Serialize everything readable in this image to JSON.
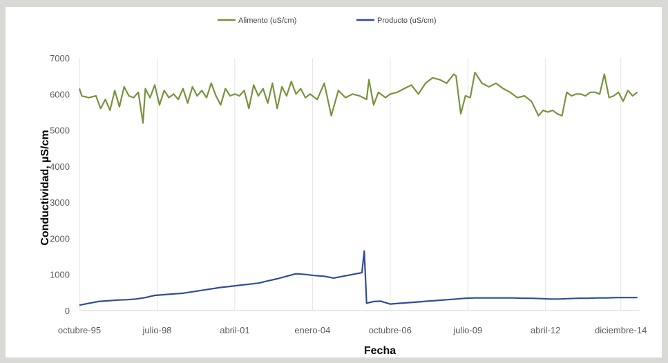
{
  "chart_data": {
    "type": "line",
    "title": "",
    "xlabel": "Fecha",
    "ylabel": "Conductividad, µS/cm",
    "ylim": [
      0,
      7000
    ],
    "y_ticks": [
      "0",
      "1000",
      "2000",
      "3000",
      "4000",
      "5000",
      "6000",
      "7000"
    ],
    "x_ticks": [
      "octubre-95",
      "julio-98",
      "abril-01",
      "enero-04",
      "octubre-06",
      "julio-09",
      "abril-12",
      "diciembre-14"
    ],
    "x_tick_dates": [
      "1995-10",
      "1998-07",
      "2001-04",
      "2004-01",
      "2006-10",
      "2009-07",
      "2012-04",
      "2014-12"
    ],
    "xlim": [
      "1995-10",
      "2015-08"
    ],
    "grid": "vertical",
    "legend_position": "top",
    "series": [
      {
        "name": "Alimento (uS/cm)",
        "color": "#77933c",
        "x": [
          "1995-10",
          "1995-11",
          "1996-02",
          "1996-05",
          "1996-07",
          "1996-09",
          "1996-11",
          "1997-01",
          "1997-03",
          "1997-05",
          "1997-07",
          "1997-09",
          "1997-11",
          "1998-01",
          "1998-02",
          "1998-04",
          "1998-06",
          "1998-08",
          "1998-10",
          "1998-12",
          "1999-02",
          "1999-04",
          "1999-06",
          "1999-08",
          "1999-10",
          "1999-12",
          "2000-02",
          "2000-04",
          "2000-06",
          "2000-08",
          "2000-10",
          "2000-12",
          "2001-02",
          "2001-04",
          "2001-06",
          "2001-08",
          "2001-10",
          "2001-12",
          "2002-02",
          "2002-04",
          "2002-06",
          "2002-08",
          "2002-10",
          "2002-12",
          "2003-02",
          "2003-04",
          "2003-06",
          "2003-08",
          "2003-10",
          "2003-12",
          "2004-03",
          "2004-06",
          "2004-09",
          "2004-12",
          "2005-03",
          "2005-06",
          "2005-09",
          "2005-12",
          "2006-01",
          "2006-03",
          "2006-05",
          "2006-08",
          "2006-10",
          "2007-01",
          "2007-04",
          "2007-07",
          "2007-10",
          "2008-01",
          "2008-04",
          "2008-07",
          "2008-10",
          "2009-01",
          "2009-02",
          "2009-04",
          "2009-06",
          "2009-08",
          "2009-10",
          "2010-01",
          "2010-04",
          "2010-07",
          "2010-10",
          "2011-01",
          "2011-04",
          "2011-07",
          "2011-10",
          "2012-01",
          "2012-03",
          "2012-05",
          "2012-07",
          "2012-09",
          "2012-11",
          "2013-01",
          "2013-03",
          "2013-05",
          "2013-07",
          "2013-09",
          "2013-11",
          "2014-01",
          "2014-03",
          "2014-05",
          "2014-07",
          "2014-09",
          "2014-11",
          "2015-01",
          "2015-03",
          "2015-05",
          "2015-07"
        ],
        "values": [
          6150,
          5950,
          5900,
          5950,
          5600,
          5850,
          5550,
          6100,
          5650,
          6200,
          5950,
          5900,
          6050,
          5200,
          6150,
          5900,
          6250,
          5700,
          6100,
          5900,
          6000,
          5850,
          6150,
          5750,
          6200,
          5950,
          6100,
          5900,
          6300,
          5950,
          5700,
          6150,
          5950,
          6000,
          5950,
          6100,
          5600,
          6250,
          5950,
          6150,
          5750,
          6300,
          5600,
          6200,
          5950,
          6350,
          6000,
          6150,
          5900,
          6000,
          5850,
          6300,
          5400,
          6100,
          5900,
          6000,
          5950,
          5850,
          6400,
          5700,
          6050,
          5900,
          6000,
          6050,
          6150,
          6250,
          6000,
          6300,
          6450,
          6400,
          6300,
          6550,
          6500,
          5450,
          5950,
          5900,
          6600,
          6300,
          6200,
          6300,
          6150,
          6050,
          5900,
          5950,
          5800,
          5400,
          5550,
          5500,
          5550,
          5450,
          5400,
          6050,
          5950,
          6000,
          6000,
          5950,
          6050,
          6050,
          6000,
          6550,
          5900,
          5950,
          6050,
          5800,
          6100,
          5950,
          6050
        ]
      },
      {
        "name": "Producto (uS/cm)",
        "color": "#2f4b9b",
        "x": [
          "1995-10",
          "1996-02",
          "1996-06",
          "1996-10",
          "1997-02",
          "1997-06",
          "1997-10",
          "1998-02",
          "1998-06",
          "1998-10",
          "1999-02",
          "1999-06",
          "1999-10",
          "2000-02",
          "2000-06",
          "2000-10",
          "2001-02",
          "2001-06",
          "2001-10",
          "2002-02",
          "2002-06",
          "2002-10",
          "2003-02",
          "2003-06",
          "2003-10",
          "2004-02",
          "2004-06",
          "2004-10",
          "2005-02",
          "2005-06",
          "2005-10",
          "2005-11",
          "2005-12",
          "2006-01",
          "2006-03",
          "2006-06",
          "2006-10",
          "2007-02",
          "2007-06",
          "2007-10",
          "2008-02",
          "2008-06",
          "2008-10",
          "2009-02",
          "2009-06",
          "2009-10",
          "2010-02",
          "2010-06",
          "2010-10",
          "2011-02",
          "2011-06",
          "2011-10",
          "2012-02",
          "2012-06",
          "2012-10",
          "2013-02",
          "2013-06",
          "2013-10",
          "2014-02",
          "2014-06",
          "2014-10",
          "2015-02",
          "2015-07"
        ],
        "values": [
          150,
          200,
          250,
          270,
          290,
          300,
          320,
          360,
          420,
          440,
          460,
          480,
          520,
          560,
          600,
          640,
          670,
          700,
          730,
          760,
          820,
          880,
          950,
          1020,
          1000,
          970,
          950,
          900,
          950,
          1000,
          1050,
          1650,
          200,
          220,
          250,
          260,
          180,
          200,
          220,
          240,
          260,
          280,
          300,
          320,
          340,
          350,
          350,
          350,
          350,
          350,
          340,
          340,
          330,
          320,
          320,
          330,
          340,
          340,
          350,
          350,
          360,
          360,
          360
        ]
      }
    ]
  }
}
